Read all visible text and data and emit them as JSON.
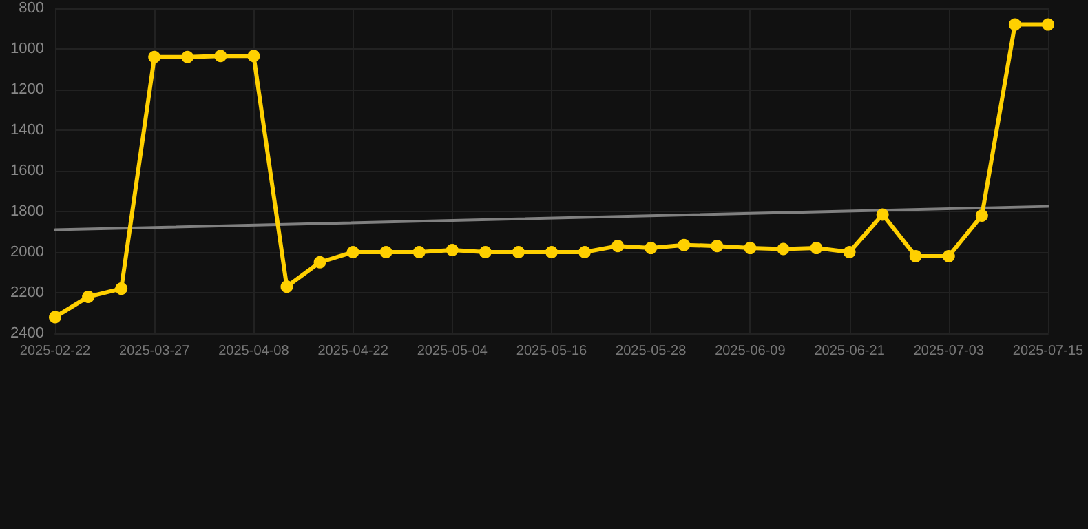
{
  "chart_data": {
    "type": "line",
    "categories": [
      "2025-02-22",
      null,
      null,
      "2025-03-27",
      null,
      null,
      "2025-04-08",
      null,
      null,
      "2025-04-22",
      null,
      null,
      "2025-05-04",
      null,
      null,
      "2025-05-16",
      null,
      null,
      "2025-05-28",
      null,
      null,
      "2025-06-09",
      null,
      null,
      "2025-06-21",
      null,
      null,
      "2025-07-03",
      null,
      null,
      "2025-07-15"
    ],
    "series": [
      {
        "color": "#ffd000",
        "marker": "circle",
        "values": [
          2320,
          2220,
          2180,
          1040,
          1040,
          1035,
          1035,
          2170,
          2050,
          2000,
          2000,
          2000,
          1990,
          2000,
          2000,
          2000,
          2000,
          1970,
          1980,
          1965,
          1970,
          1980,
          1985,
          1980,
          2000,
          1815,
          2020,
          2020,
          1820,
          880,
          880
        ]
      },
      {
        "color": "#808080",
        "marker": "none",
        "values": [
          1890,
          null,
          null,
          null,
          null,
          null,
          null,
          null,
          null,
          null,
          null,
          null,
          null,
          null,
          null,
          null,
          null,
          null,
          null,
          null,
          null,
          null,
          null,
          null,
          null,
          null,
          null,
          null,
          null,
          null,
          1775
        ]
      }
    ],
    "ylim": [
      2400,
      800
    ],
    "yticks": [
      800,
      1000,
      1200,
      1400,
      1600,
      1800,
      2000,
      2200,
      2400
    ],
    "grid": true,
    "line_style": "solid"
  }
}
